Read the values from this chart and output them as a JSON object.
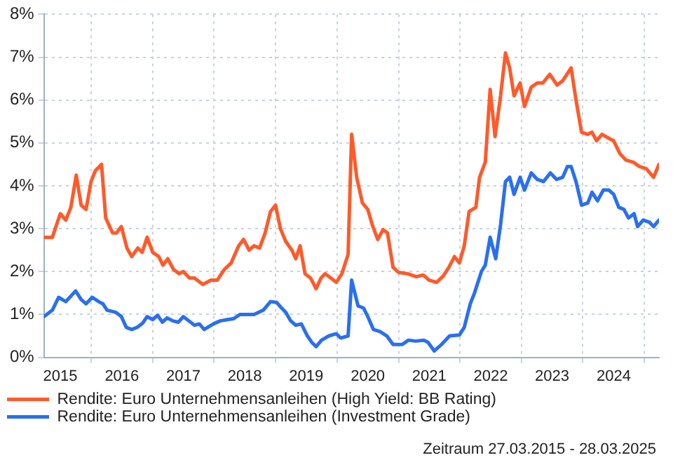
{
  "chart_data": {
    "type": "line",
    "xlim": [
      "2015-03-27",
      "2025-03-28"
    ],
    "xticks": [
      {
        "value": "2015-07-02",
        "label": "2015"
      },
      {
        "value": "2016-01-01",
        "label": null
      },
      {
        "value": "2016-07-02",
        "label": "2016"
      },
      {
        "value": "2017-01-01",
        "label": null
      },
      {
        "value": "2017-07-02",
        "label": "2017"
      },
      {
        "value": "2018-01-01",
        "label": null
      },
      {
        "value": "2018-07-02",
        "label": "2018"
      },
      {
        "value": "2019-01-01",
        "label": null
      },
      {
        "value": "2019-07-02",
        "label": "2019"
      },
      {
        "value": "2020-01-01",
        "label": null
      },
      {
        "value": "2020-07-02",
        "label": "2020"
      },
      {
        "value": "2021-01-01",
        "label": null
      },
      {
        "value": "2021-07-02",
        "label": "2021"
      },
      {
        "value": "2022-01-01",
        "label": null
      },
      {
        "value": "2022-07-02",
        "label": "2022"
      },
      {
        "value": "2023-01-01",
        "label": null
      },
      {
        "value": "2023-07-02",
        "label": "2023"
      },
      {
        "value": "2024-01-01",
        "label": null
      },
      {
        "value": "2024-07-02",
        "label": "2024"
      },
      {
        "value": "2025-01-01",
        "label": null
      }
    ],
    "ylim": [
      0,
      8
    ],
    "yticks": [
      {
        "value": 0,
        "label": "0%"
      },
      {
        "value": 1,
        "label": "1%"
      },
      {
        "value": 2,
        "label": "2%"
      },
      {
        "value": 3,
        "label": "3%"
      },
      {
        "value": 4,
        "label": "4%"
      },
      {
        "value": 5,
        "label": "5%"
      },
      {
        "value": 6,
        "label": "6%"
      },
      {
        "value": 7,
        "label": "7%"
      },
      {
        "value": 8,
        "label": "8%"
      }
    ],
    "grid": true,
    "legend": "bottom",
    "marker": "none",
    "line_style": "solid",
    "annotations": [
      "Zeitraum 27.03.2015 - 28.03.2025"
    ],
    "series": [
      {
        "name": "Rendite: Euro Unternehmensanleihen (High Yield: BB Rating)",
        "color": "#ff5a2a",
        "x": [
          "2015-03-27",
          "2015-05-16",
          "2015-07-02",
          "2015-08-04",
          "2015-09-03",
          "2015-10-05",
          "2015-11-03",
          "2015-12-02",
          "2016-01-01",
          "2016-01-26",
          "2016-03-03",
          "2016-03-28",
          "2016-05-08",
          "2016-05-31",
          "2016-06-29",
          "2016-08-01",
          "2016-08-30",
          "2016-10-05",
          "2016-10-31",
          "2016-11-29",
          "2017-01-01",
          "2017-02-06",
          "2017-03-03",
          "2017-04-01",
          "2017-05-05",
          "2017-06-07",
          "2017-07-02",
          "2017-08-08",
          "2017-09-06",
          "2017-10-27",
          "2017-12-13",
          "2018-01-19",
          "2018-03-03",
          "2018-04-12",
          "2018-05-27",
          "2018-06-25",
          "2018-07-28",
          "2018-08-26",
          "2018-09-28",
          "2018-10-31",
          "2018-12-02",
          "2019-01-01",
          "2019-01-30",
          "2019-03-03",
          "2019-04-08",
          "2019-05-01",
          "2019-05-27",
          "2019-06-25",
          "2019-07-28",
          "2019-08-30",
          "2019-09-28",
          "2019-10-23",
          "2019-12-28",
          "2020-01-30",
          "2020-03-07",
          "2020-03-28",
          "2020-04-27",
          "2020-05-31",
          "2020-07-02",
          "2020-07-28",
          "2020-08-30",
          "2020-10-01",
          "2020-10-27",
          "2020-11-29",
          "2021-01-01",
          "2021-02-24",
          "2021-04-16",
          "2021-05-27",
          "2021-07-02",
          "2021-08-15",
          "2021-09-24",
          "2021-10-27",
          "2021-11-29",
          "2021-12-28",
          "2022-01-26",
          "2022-02-24",
          "2022-04-05",
          "2022-04-27",
          "2022-05-31",
          "2022-06-29",
          "2022-07-28",
          "2022-08-30",
          "2022-09-28",
          "2022-10-23",
          "2022-11-18",
          "2022-12-24",
          "2023-01-19",
          "2023-02-28",
          "2023-04-05",
          "2023-05-08",
          "2023-06-18",
          "2023-08-01",
          "2023-09-03",
          "2023-10-23",
          "2023-11-21",
          "2023-12-24",
          "2024-01-30",
          "2024-02-24",
          "2024-03-22",
          "2024-04-23",
          "2024-06-07",
          "2024-07-02",
          "2024-08-08",
          "2024-09-13",
          "2024-10-27",
          "2024-12-02",
          "2025-01-12",
          "2025-02-24",
          "2025-03-28"
        ],
        "values": [
          2.8,
          2.8,
          3.35,
          3.2,
          3.5,
          4.25,
          3.55,
          3.45,
          4.1,
          4.35,
          4.5,
          3.25,
          2.9,
          2.9,
          3.05,
          2.55,
          2.35,
          2.55,
          2.45,
          2.8,
          2.45,
          2.35,
          2.15,
          2.3,
          2.05,
          1.95,
          2.0,
          1.85,
          1.85,
          1.7,
          1.8,
          1.8,
          2.05,
          2.2,
          2.6,
          2.75,
          2.5,
          2.6,
          2.55,
          2.9,
          3.4,
          3.55,
          3.0,
          2.7,
          2.5,
          2.3,
          2.6,
          1.95,
          1.85,
          1.6,
          1.85,
          1.95,
          1.75,
          1.95,
          2.4,
          5.2,
          4.2,
          3.6,
          3.45,
          3.1,
          2.75,
          2.98,
          2.9,
          2.1,
          1.98,
          1.95,
          1.88,
          1.92,
          1.8,
          1.75,
          1.9,
          2.1,
          2.35,
          2.2,
          2.6,
          3.4,
          3.5,
          4.2,
          4.55,
          6.25,
          5.15,
          6.1,
          7.1,
          6.75,
          6.1,
          6.4,
          5.85,
          6.3,
          6.4,
          6.4,
          6.6,
          6.35,
          6.45,
          6.75,
          6.0,
          5.25,
          5.2,
          5.25,
          5.05,
          5.2,
          5.1,
          5.05,
          4.75,
          4.6,
          4.55,
          4.45,
          4.4,
          4.2,
          4.5
        ]
      },
      {
        "name": "Rendite: Euro Unternehmensanleihen (Investment Grade)",
        "color": "#2a6ff0",
        "x": [
          "2015-03-27",
          "2015-05-16",
          "2015-06-22",
          "2015-08-04",
          "2015-10-01",
          "2015-11-03",
          "2015-12-02",
          "2016-01-08",
          "2016-02-15",
          "2016-03-11",
          "2016-04-05",
          "2016-05-27",
          "2016-06-29",
          "2016-07-28",
          "2016-08-30",
          "2016-10-01",
          "2016-11-03",
          "2016-11-29",
          "2017-01-01",
          "2017-01-30",
          "2017-02-28",
          "2017-03-28",
          "2017-05-01",
          "2017-06-03",
          "2017-07-02",
          "2017-08-04",
          "2017-09-06",
          "2017-10-05",
          "2017-11-03",
          "2017-12-28",
          "2018-02-06",
          "2018-03-22",
          "2018-04-27",
          "2018-06-03",
          "2018-08-26",
          "2018-10-20",
          "2018-12-02",
          "2019-01-08",
          "2019-02-06",
          "2019-03-03",
          "2019-04-01",
          "2019-05-01",
          "2019-06-03",
          "2019-07-09",
          "2019-08-04",
          "2019-08-30",
          "2019-10-01",
          "2019-11-14",
          "2019-12-28",
          "2020-01-23",
          "2020-03-07",
          "2020-03-28",
          "2020-05-05",
          "2020-06-07",
          "2020-07-02",
          "2020-08-04",
          "2020-09-13",
          "2020-10-23",
          "2020-11-29",
          "2021-01-23",
          "2021-02-28",
          "2021-04-12",
          "2021-05-31",
          "2021-06-25",
          "2021-08-01",
          "2021-09-13",
          "2021-10-31",
          "2021-12-28",
          "2022-01-26",
          "2022-03-03",
          "2022-03-28",
          "2022-05-08",
          "2022-05-31",
          "2022-06-29",
          "2022-08-01",
          "2022-08-30",
          "2022-09-28",
          "2022-10-23",
          "2022-11-18",
          "2022-12-24",
          "2023-01-19",
          "2023-02-28",
          "2023-04-05",
          "2023-05-12",
          "2023-06-22",
          "2023-07-28",
          "2023-09-03",
          "2023-10-01",
          "2023-10-23",
          "2023-11-21",
          "2023-12-24",
          "2024-01-30",
          "2024-02-24",
          "2024-03-28",
          "2024-05-01",
          "2024-06-03",
          "2024-07-02",
          "2024-08-01",
          "2024-09-01",
          "2024-09-28",
          "2024-10-31",
          "2024-11-21",
          "2024-12-24",
          "2025-01-30",
          "2025-02-24",
          "2025-03-28"
        ],
        "values": [
          0.95,
          1.1,
          1.4,
          1.3,
          1.55,
          1.35,
          1.25,
          1.4,
          1.3,
          1.25,
          1.1,
          1.05,
          0.95,
          0.7,
          0.65,
          0.7,
          0.8,
          0.95,
          0.88,
          0.98,
          0.82,
          0.92,
          0.85,
          0.82,
          0.95,
          0.85,
          0.75,
          0.78,
          0.65,
          0.78,
          0.85,
          0.88,
          0.9,
          1.0,
          1.0,
          1.1,
          1.3,
          1.28,
          1.15,
          1.05,
          0.85,
          0.75,
          0.78,
          0.5,
          0.35,
          0.25,
          0.4,
          0.5,
          0.55,
          0.45,
          0.5,
          1.8,
          1.2,
          1.15,
          0.95,
          0.65,
          0.6,
          0.5,
          0.3,
          0.3,
          0.4,
          0.38,
          0.4,
          0.35,
          0.15,
          0.3,
          0.5,
          0.52,
          0.7,
          1.25,
          1.5,
          2.0,
          2.15,
          2.8,
          2.3,
          3.1,
          4.1,
          4.2,
          3.8,
          4.2,
          3.9,
          4.3,
          4.15,
          4.1,
          4.3,
          4.15,
          4.2,
          4.45,
          4.45,
          4.1,
          3.55,
          3.6,
          3.85,
          3.65,
          3.9,
          3.9,
          3.8,
          3.5,
          3.45,
          3.25,
          3.35,
          3.05,
          3.2,
          3.15,
          3.05,
          3.2
        ]
      }
    ]
  }
}
